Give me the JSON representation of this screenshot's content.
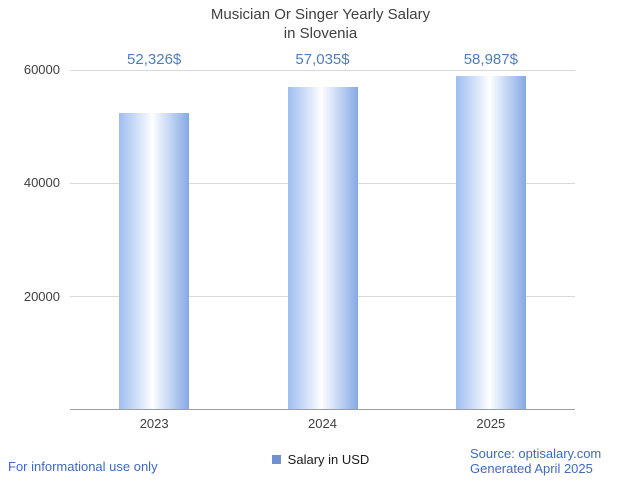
{
  "title": {
    "line1": "Musician Or Singer Yearly Salary",
    "line2": "in Slovenia"
  },
  "chart_data": {
    "type": "bar",
    "title": "Musician Or Singer Yearly Salary in Slovenia",
    "categories": [
      "2023",
      "2024",
      "2025"
    ],
    "values": [
      52326,
      57035,
      58987
    ],
    "value_labels": [
      "52,326$",
      "57,035$",
      "58,987$"
    ],
    "ylim": [
      0,
      60000
    ],
    "yticks": [
      20000,
      40000,
      60000
    ],
    "ytick_labels": [
      "20000",
      "40000",
      "60000"
    ],
    "xlabel": "",
    "ylabel": "",
    "grid": true,
    "legend": [
      {
        "label": "Salary in USD",
        "color": "#7090d0"
      }
    ],
    "legend_position": "bottom"
  },
  "legend": {
    "label": "Salary in USD"
  },
  "footer": {
    "disclaimer": "For informational use only",
    "source": "Source: optisalary.com",
    "generated": "Generated April 2025"
  },
  "colors": {
    "title_text": "#3f3f3f",
    "value_label_text": "#4d7ebf",
    "footer_text": "#3e68c9",
    "axis_text": "#404040",
    "gridline": "#d9d9d9",
    "axis_line": "#9e9e9e",
    "legend_swatch": "#7090d0",
    "bar_gradient": [
      "#9fbdf0",
      "#fdfeff",
      "#84a9e6"
    ]
  }
}
